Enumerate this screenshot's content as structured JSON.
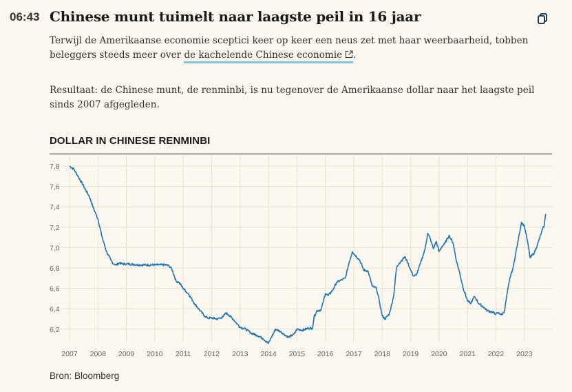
{
  "post": {
    "time": "06:43",
    "headline": "Chinese munt tuimelt naar laagste peil in 16 jaar",
    "copy_icon": "copy-link-icon",
    "paragraph1_before": "Terwijl de Amerikaanse economie sceptici keer op keer een neus zet met haar weerbaarheid, tobben beleggers steeds meer over ",
    "paragraph1_link": "de kachelende Chinese economie",
    "paragraph1_after": ".",
    "link_icon": "external-link-icon",
    "paragraph2": "Resultaat: de Chinese munt, de renminbi, is nu tegenover de Amerikaanse dollar naar het laagste peil sinds 2007 afgegleden.",
    "source": "Bron: Bloomberg"
  },
  "colors": {
    "background": "#fdf8ef",
    "line": "#1f74b0",
    "grid": "#e6e0d6",
    "link_underline": "#7fc3dc"
  },
  "chart_data": {
    "type": "line",
    "title": "DOLLAR IN CHINESE RENMINBI",
    "xlabel": "",
    "ylabel": "",
    "ylim": [
      6.1,
      7.85
    ],
    "xlim": [
      2007.0,
      2023.85
    ],
    "yticks": [
      7.8,
      7.6,
      7.4,
      7.2,
      7.0,
      6.8,
      6.6,
      6.4,
      6.2
    ],
    "ytick_labels": [
      "7,8",
      "7,6",
      "7,4",
      "7,2",
      "7,0",
      "6,8",
      "6,6",
      "6,4",
      "6,2"
    ],
    "xticks": [
      2007,
      2008,
      2009,
      2010,
      2011,
      2012,
      2013,
      2014,
      2015,
      2016,
      2017,
      2018,
      2019,
      2020,
      2021,
      2022,
      2023
    ],
    "xtick_labels": [
      "2007",
      "2008",
      "2009",
      "2010",
      "2011",
      "2012",
      "2013",
      "2014",
      "2015",
      "2016",
      "2017",
      "2018",
      "2019",
      "2020",
      "2021",
      "2022",
      "2023"
    ],
    "grid": true,
    "series": [
      {
        "x": [
          2007.0,
          2007.15,
          2007.3,
          2007.5,
          2007.7,
          2007.85,
          2008.0,
          2008.15,
          2008.3,
          2008.45,
          2008.55,
          2008.65,
          2008.75,
          2008.85,
          2009.0,
          2009.5,
          2010.0,
          2010.4,
          2010.5,
          2010.6,
          2010.75,
          2010.85,
          2011.0,
          2011.2,
          2011.4,
          2011.6,
          2011.75,
          2011.85,
          2012.0,
          2012.2,
          2012.4,
          2012.5,
          2012.6,
          2012.75,
          2012.9,
          2013.0,
          2013.2,
          2013.4,
          2013.6,
          2013.8,
          2014.0,
          2014.1,
          2014.25,
          2014.4,
          2014.55,
          2014.7,
          2014.9,
          2015.0,
          2015.2,
          2015.4,
          2015.55,
          2015.6,
          2015.7,
          2015.85,
          2016.0,
          2016.1,
          2016.25,
          2016.4,
          2016.55,
          2016.7,
          2016.85,
          2016.95,
          2017.0,
          2017.2,
          2017.35,
          2017.5,
          2017.65,
          2017.8,
          2017.9,
          2018.0,
          2018.1,
          2018.25,
          2018.4,
          2018.5,
          2018.6,
          2018.8,
          2018.9,
          2019.0,
          2019.1,
          2019.2,
          2019.35,
          2019.5,
          2019.6,
          2019.7,
          2019.8,
          2019.9,
          2020.0,
          2020.1,
          2020.2,
          2020.35,
          2020.5,
          2020.6,
          2020.7,
          2020.85,
          2021.0,
          2021.1,
          2021.25,
          2021.4,
          2021.55,
          2021.7,
          2021.85,
          2022.0,
          2022.1,
          2022.2,
          2022.3,
          2022.4,
          2022.5,
          2022.6,
          2022.7,
          2022.8,
          2022.9,
          2023.0,
          2023.1,
          2023.2,
          2023.35,
          2023.5,
          2023.6,
          2023.7,
          2023.75
        ],
        "y": [
          7.8,
          7.77,
          7.7,
          7.6,
          7.5,
          7.38,
          7.28,
          7.1,
          6.96,
          6.88,
          6.84,
          6.83,
          6.85,
          6.84,
          6.84,
          6.83,
          6.83,
          6.83,
          6.82,
          6.79,
          6.67,
          6.66,
          6.6,
          6.54,
          6.45,
          6.38,
          6.33,
          6.31,
          6.31,
          6.3,
          6.32,
          6.36,
          6.34,
          6.3,
          6.25,
          6.22,
          6.2,
          6.16,
          6.14,
          6.11,
          6.06,
          6.12,
          6.2,
          6.18,
          6.15,
          6.12,
          6.15,
          6.2,
          6.19,
          6.21,
          6.21,
          6.32,
          6.38,
          6.39,
          6.55,
          6.53,
          6.58,
          6.66,
          6.68,
          6.7,
          6.87,
          6.96,
          6.94,
          6.88,
          6.78,
          6.77,
          6.62,
          6.6,
          6.47,
          6.33,
          6.3,
          6.35,
          6.52,
          6.8,
          6.85,
          6.91,
          6.85,
          6.78,
          6.72,
          6.73,
          6.85,
          6.98,
          7.14,
          7.08,
          6.99,
          7.06,
          6.96,
          7.01,
          7.04,
          7.12,
          7.04,
          6.88,
          6.78,
          6.6,
          6.48,
          6.45,
          6.52,
          6.45,
          6.42,
          6.38,
          6.37,
          6.35,
          6.36,
          6.34,
          6.38,
          6.56,
          6.71,
          6.8,
          6.95,
          7.1,
          7.25,
          7.21,
          7.08,
          6.9,
          6.95,
          7.06,
          7.15,
          7.22,
          7.33
        ]
      }
    ]
  }
}
